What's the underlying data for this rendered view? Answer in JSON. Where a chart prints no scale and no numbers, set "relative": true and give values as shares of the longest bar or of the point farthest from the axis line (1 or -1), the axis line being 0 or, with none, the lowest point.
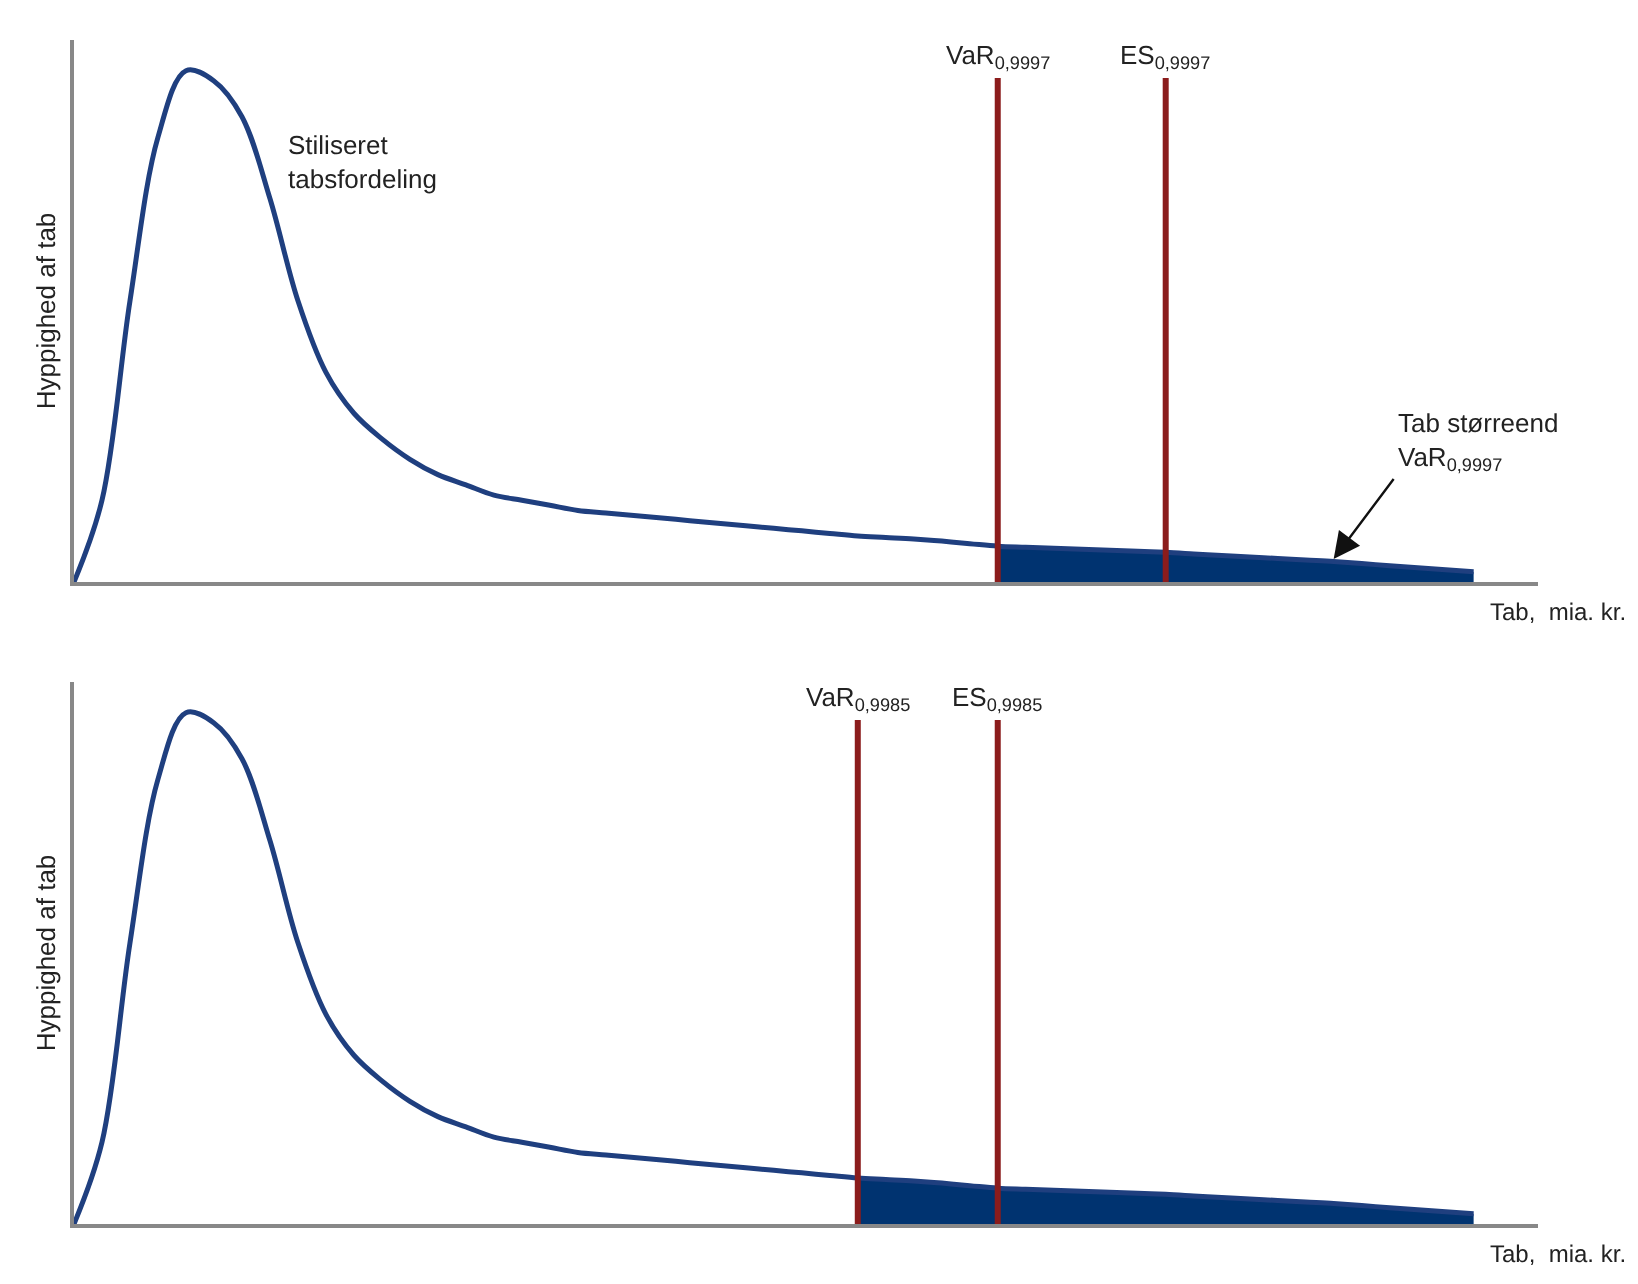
{
  "chart_data": [
    {
      "type": "line",
      "relative": true,
      "ylabel": "Hyppighed af tab",
      "xlabel": "Tab,  mia. kr.",
      "categories": [
        null,
        null,
        null,
        null,
        null,
        null,
        null,
        null,
        null,
        null,
        null,
        null,
        null,
        null,
        null,
        null,
        null,
        null,
        null,
        null,
        null,
        null,
        null,
        null,
        null,
        null,
        null,
        null,
        null,
        null,
        null,
        null,
        null,
        null,
        null,
        null,
        null,
        null,
        null,
        null,
        null,
        null,
        null,
        null,
        null,
        null,
        null,
        null,
        null,
        null,
        null
      ],
      "series": [
        {
          "color": "#1f3f7f",
          "values": [
            0,
            0.16,
            0.55,
            0.87,
            1,
            0.98,
            0.91,
            0.75,
            0.55,
            0.41,
            0.33,
            0.28,
            0.24,
            0.21,
            0.19,
            0.17,
            0.16,
            0.15,
            0.14,
            0.135,
            0.13,
            0.125,
            0.12,
            0.115,
            0.11,
            0.105,
            0.1,
            0.095,
            0.09,
            0.087,
            0.084,
            0.08,
            0.075,
            0.07,
            0.068,
            0.066,
            0.064,
            0.062,
            0.06,
            0.058,
            0.055,
            0.052,
            0.049,
            0.046,
            0.043,
            0.04,
            0.036,
            0.032,
            0.028,
            0.024,
            0.02
          ]
        },
        {
          "type": "area",
          "color": "#003370",
          "values": [
            null,
            null,
            null,
            null,
            null,
            null,
            null,
            null,
            null,
            null,
            null,
            null,
            null,
            null,
            null,
            null,
            null,
            null,
            null,
            null,
            null,
            null,
            null,
            null,
            null,
            null,
            null,
            null,
            null,
            null,
            null,
            null,
            null,
            0.07,
            0.068,
            0.066,
            0.064,
            0.062,
            0.06,
            0.058,
            0.055,
            0.052,
            0.049,
            0.046,
            0.043,
            0.04,
            0.036,
            0.032,
            0.028,
            0.024,
            0.02
          ]
        }
      ],
      "annotations": [
        "VaR$_{0,9997}$",
        "ES$_{0,9997}$",
        "Stiliseret\ntabsfordeling",
        "Tab størreend\nVaR$_{0,9997}$"
      ],
      "grid": false,
      "legend": false,
      "marker": "none",
      "line_style": "solid"
    },
    {
      "type": "line",
      "relative": true,
      "ylabel": "Hyppighed af tab",
      "xlabel": "Tab,  mia. kr.",
      "categories": [
        null,
        null,
        null,
        null,
        null,
        null,
        null,
        null,
        null,
        null,
        null,
        null,
        null,
        null,
        null,
        null,
        null,
        null,
        null,
        null,
        null,
        null,
        null,
        null,
        null,
        null,
        null,
        null,
        null,
        null,
        null,
        null,
        null,
        null,
        null,
        null,
        null,
        null,
        null,
        null,
        null,
        null,
        null,
        null,
        null,
        null,
        null,
        null,
        null,
        null,
        null
      ],
      "series": [
        {
          "color": "#1f3f7f",
          "values": [
            0,
            0.16,
            0.55,
            0.87,
            1,
            0.98,
            0.91,
            0.75,
            0.55,
            0.41,
            0.33,
            0.28,
            0.24,
            0.21,
            0.19,
            0.17,
            0.16,
            0.15,
            0.14,
            0.135,
            0.13,
            0.125,
            0.12,
            0.115,
            0.11,
            0.105,
            0.1,
            0.095,
            0.09,
            0.087,
            0.084,
            0.08,
            0.075,
            0.07,
            0.068,
            0.066,
            0.064,
            0.062,
            0.06,
            0.058,
            0.055,
            0.052,
            0.049,
            0.046,
            0.043,
            0.04,
            0.036,
            0.032,
            0.028,
            0.024,
            0.02
          ]
        },
        {
          "type": "area",
          "color": "#003370",
          "values": [
            null,
            null,
            null,
            null,
            null,
            null,
            null,
            null,
            null,
            null,
            null,
            null,
            null,
            null,
            null,
            null,
            null,
            null,
            null,
            null,
            null,
            null,
            null,
            null,
            null,
            null,
            null,
            null,
            0.09,
            0.087,
            0.084,
            0.08,
            0.075,
            0.07,
            0.068,
            0.066,
            0.064,
            0.062,
            0.06,
            0.058,
            0.055,
            0.052,
            0.049,
            0.046,
            0.043,
            0.04,
            0.036,
            0.032,
            0.028,
            0.024,
            0.02
          ]
        }
      ],
      "annotations": [
        "VaR$_{0,9985}$",
        "ES$_{0,9985}$"
      ],
      "grid": false,
      "legend": false,
      "marker": "none",
      "line_style": "solid"
    }
  ]
}
